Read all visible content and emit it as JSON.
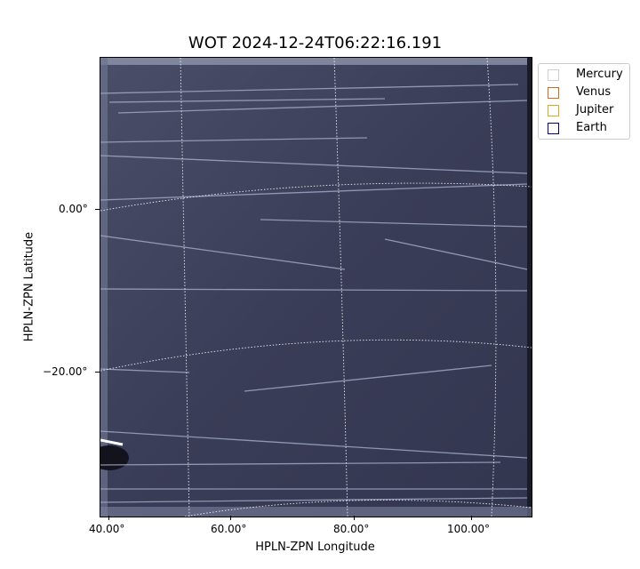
{
  "figure": {
    "title": "WOT 2024-12-24T06:22:16.191",
    "xlabel": "HPLN-ZPN Longitude",
    "ylabel": "HPLN-ZPN Latitude",
    "x_ticks": [
      "40.00°",
      "60.00°",
      "80.00°",
      "100.00°"
    ],
    "y_ticks": [
      "0.00°",
      "−20.00°"
    ]
  },
  "legend": {
    "items": [
      {
        "label": "Mercury",
        "color": "#d0d0d0"
      },
      {
        "label": "Venus",
        "color": "#d2691e"
      },
      {
        "label": "Jupiter",
        "color": "#daa520"
      },
      {
        "label": "Earth",
        "color": "#000080"
      }
    ]
  },
  "image": {
    "background_color": "#3a3d57",
    "streak_color": "#9ea7c4",
    "grid_color": "#ffffff"
  }
}
